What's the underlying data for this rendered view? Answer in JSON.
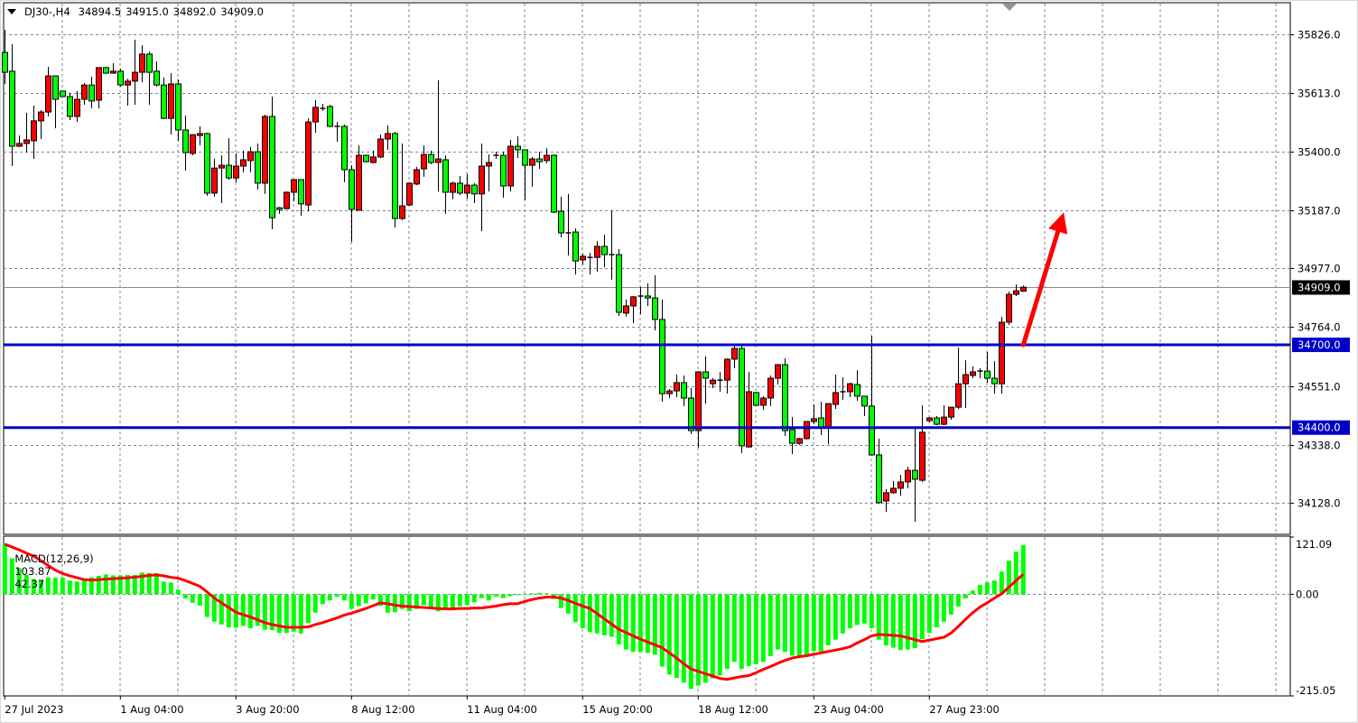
{
  "header": {
    "symbol": "DJ30-,H4",
    "open": "34894.5",
    "high": "34915.0",
    "low": "34892.0",
    "close": "34909.0"
  },
  "chart_data": [
    {
      "type": "candlestick",
      "symbol": "DJ30-",
      "timeframe": "H4",
      "ylim": [
        34013,
        35937
      ],
      "grid": true,
      "colors": {
        "bull_body": "#ff0000",
        "bear_body": "#00ff00",
        "outline": "#000000",
        "grid": "#7b8794",
        "current_price_line": "#8c8c8c"
      },
      "price_ticks": [
        "35826.0",
        "35613.0",
        "35400.0",
        "35187.0",
        "34977.0",
        "34764.0",
        "34551.0",
        "34338.0",
        "34128.0"
      ],
      "current_price": {
        "value": 34909.0,
        "label": "34909.0"
      },
      "levels": [
        {
          "value": 34700,
          "label": "34700.0",
          "color": "#0000c8"
        },
        {
          "value": 34400,
          "label": "34400.0",
          "color": "#0000c8"
        }
      ],
      "annotation": {
        "type": "arrow",
        "color": "#ff0000",
        "from": {
          "bar": 142,
          "price": 34700
        },
        "to": {
          "bar": 147.6,
          "price": 35180
        }
      },
      "x_ticks": [
        {
          "bar": 1,
          "label": "27 Jul 2023"
        },
        {
          "bar": 17,
          "label": "1 Aug 04:00"
        },
        {
          "bar": 33,
          "label": "3 Aug 20:00"
        },
        {
          "bar": 49,
          "label": "8 Aug 12:00"
        },
        {
          "bar": 65,
          "label": "11 Aug 04:00"
        },
        {
          "bar": 81,
          "label": "15 Aug 20:00"
        },
        {
          "bar": 97,
          "label": "18 Aug 12:00"
        },
        {
          "bar": 113,
          "label": "23 Aug 04:00"
        },
        {
          "bar": 129,
          "label": "27 Aug 23:00"
        }
      ],
      "ohlc": [
        [
          35760,
          35842,
          35646,
          35688
        ],
        [
          35692,
          35790,
          35348,
          35420
        ],
        [
          35420,
          35459,
          35417,
          35430
        ],
        [
          35430,
          35541,
          35397,
          35443
        ],
        [
          35440,
          35567,
          35374,
          35512
        ],
        [
          35512,
          35551,
          35446,
          35544
        ],
        [
          35544,
          35708,
          35528,
          35675
        ],
        [
          35675,
          35675,
          35485,
          35590
        ],
        [
          35620,
          35620,
          35600,
          35600
        ],
        [
          35600,
          35613,
          35515,
          35528
        ],
        [
          35528,
          35620,
          35508,
          35590
        ],
        [
          35590,
          35649,
          35570,
          35642
        ],
        [
          35642,
          35672,
          35557,
          35584
        ],
        [
          35587,
          35705,
          35557,
          35705
        ],
        [
          35705,
          35708,
          35682,
          35685
        ],
        [
          35685,
          35721,
          35682,
          35692
        ],
        [
          35692,
          35701,
          35636,
          35642
        ],
        [
          35642,
          35665,
          35567,
          35656
        ],
        [
          35656,
          35806,
          35570,
          35688
        ],
        [
          35688,
          35786,
          35652,
          35754
        ],
        [
          35754,
          35763,
          35570,
          35688
        ],
        [
          35692,
          35728,
          35636,
          35642
        ],
        [
          35642,
          35669,
          35518,
          35521
        ],
        [
          35521,
          35685,
          35462,
          35646
        ],
        [
          35646,
          35662,
          35440,
          35479
        ],
        [
          35479,
          35531,
          35332,
          35397
        ],
        [
          35394,
          35462,
          35387,
          35462
        ],
        [
          35459,
          35492,
          35423,
          35466
        ],
        [
          35466,
          35469,
          35240,
          35250
        ],
        [
          35250,
          35374,
          35237,
          35341
        ],
        [
          35341,
          35387,
          35214,
          35351
        ],
        [
          35351,
          35449,
          35299,
          35305
        ],
        [
          35305,
          35394,
          35289,
          35348
        ],
        [
          35348,
          35404,
          35325,
          35371
        ],
        [
          35368,
          35417,
          35325,
          35400
        ],
        [
          35400,
          35430,
          35263,
          35286
        ],
        [
          35286,
          35534,
          35247,
          35528
        ],
        [
          35528,
          35600,
          35119,
          35161
        ],
        [
          35197,
          35200,
          35175,
          35191
        ],
        [
          35194,
          35257,
          35191,
          35253
        ],
        [
          35253,
          35299,
          35220,
          35299
        ],
        [
          35299,
          35299,
          35168,
          35211
        ],
        [
          35207,
          35521,
          35184,
          35508
        ],
        [
          35508,
          35587,
          35469,
          35561
        ],
        [
          35557,
          35574,
          35548,
          35557
        ],
        [
          35564,
          35570,
          35489,
          35492
        ],
        [
          35492,
          35508,
          35436,
          35492
        ],
        [
          35492,
          35498,
          35289,
          35335
        ],
        [
          35335,
          35351,
          35073,
          35191
        ],
        [
          35188,
          35423,
          35188,
          35387
        ],
        [
          35387,
          35390,
          35361,
          35364
        ],
        [
          35361,
          35404,
          35358,
          35381
        ],
        [
          35381,
          35462,
          35377,
          35446
        ],
        [
          35446,
          35495,
          35407,
          35466
        ],
        [
          35466,
          35472,
          35125,
          35158
        ],
        [
          35158,
          35430,
          35152,
          35204
        ],
        [
          35207,
          35289,
          35204,
          35286
        ],
        [
          35283,
          35345,
          35279,
          35335
        ],
        [
          35338,
          35423,
          35309,
          35390
        ],
        [
          35390,
          35404,
          35355,
          35361
        ],
        [
          35361,
          35659,
          35256,
          35374
        ],
        [
          35371,
          35387,
          35175,
          35253
        ],
        [
          35253,
          35292,
          35227,
          35286
        ],
        [
          35286,
          35312,
          35243,
          35250
        ],
        [
          35250,
          35319,
          35230,
          35279
        ],
        [
          35279,
          35286,
          35214,
          35247
        ],
        [
          35247,
          35430,
          35112,
          35348
        ],
        [
          35348,
          35390,
          35256,
          35361
        ],
        [
          35387,
          35400,
          35374,
          35384
        ],
        [
          35387,
          35400,
          35233,
          35276
        ],
        [
          35276,
          35443,
          35256,
          35420
        ],
        [
          35420,
          35456,
          35377,
          35407
        ],
        [
          35407,
          35407,
          35224,
          35351
        ],
        [
          35351,
          35381,
          35273,
          35374
        ],
        [
          35374,
          35400,
          35338,
          35364
        ],
        [
          35368,
          35413,
          35358,
          35387
        ],
        [
          35387,
          35390,
          35178,
          35181
        ],
        [
          35184,
          35237,
          35089,
          35106
        ],
        [
          35106,
          35247,
          35024,
          35106
        ],
        [
          35109,
          35122,
          34955,
          35004
        ],
        [
          35008,
          35030,
          34991,
          35021
        ],
        [
          35017,
          35034,
          34955,
          35017
        ],
        [
          35017,
          35076,
          34965,
          35057
        ],
        [
          35057,
          35099,
          34981,
          35027
        ],
        [
          35027,
          35188,
          34936,
          35027
        ],
        [
          35027,
          35047,
          34805,
          34818
        ],
        [
          34815,
          34864,
          34802,
          34841
        ],
        [
          34841,
          34877,
          34779,
          34874
        ],
        [
          34877,
          34910,
          34811,
          34877
        ],
        [
          34877,
          34923,
          34841,
          34870
        ],
        [
          34870,
          34952,
          34752,
          34792
        ],
        [
          34792,
          34864,
          34494,
          34523
        ],
        [
          34523,
          34540,
          34507,
          34533
        ],
        [
          34533,
          34592,
          34510,
          34563
        ],
        [
          34563,
          34589,
          34478,
          34507
        ],
        [
          34507,
          34543,
          34376,
          34389
        ],
        [
          34389,
          34605,
          34327,
          34602
        ],
        [
          34602,
          34658,
          34487,
          34579
        ],
        [
          34559,
          34579,
          34543,
          34572
        ],
        [
          34572,
          34602,
          34530,
          34572
        ],
        [
          34572,
          34651,
          34523,
          34648
        ],
        [
          34648,
          34697,
          34615,
          34687
        ],
        [
          34687,
          34697,
          34307,
          34334
        ],
        [
          34330,
          34602,
          34327,
          34530
        ],
        [
          34527,
          34530,
          34478,
          34481
        ],
        [
          34481,
          34514,
          34464,
          34507
        ],
        [
          34507,
          34589,
          34478,
          34579
        ],
        [
          34579,
          34631,
          34556,
          34628
        ],
        [
          34628,
          34651,
          34370,
          34389
        ],
        [
          34393,
          34438,
          34304,
          34343
        ],
        [
          34343,
          34363,
          34337,
          34360
        ],
        [
          34360,
          34422,
          34357,
          34422
        ],
        [
          34422,
          34484,
          34412,
          34432
        ],
        [
          34435,
          34494,
          34373,
          34402
        ],
        [
          34402,
          34487,
          34340,
          34487
        ],
        [
          34484,
          34592,
          34468,
          34527
        ],
        [
          34530,
          34582,
          34500,
          34530
        ],
        [
          34530,
          34563,
          34510,
          34559
        ],
        [
          34556,
          34608,
          34497,
          34514
        ],
        [
          34514,
          34514,
          34442,
          34478
        ],
        [
          34478,
          34733,
          34298,
          34301
        ],
        [
          34301,
          34360,
          34124,
          34128
        ],
        [
          34134,
          34177,
          34095,
          34164
        ],
        [
          34164,
          34206,
          34160,
          34180
        ],
        [
          34180,
          34229,
          34153,
          34203
        ],
        [
          34203,
          34258,
          34180,
          34245
        ],
        [
          34245,
          34402,
          34059,
          34213
        ],
        [
          34209,
          34481,
          34203,
          34383
        ],
        [
          34425,
          34438,
          34419,
          34435
        ],
        [
          34435,
          34442,
          34409,
          34412
        ],
        [
          34412,
          34481,
          34409,
          34438
        ],
        [
          34438,
          34474,
          34428,
          34474
        ],
        [
          34474,
          34690,
          34468,
          34559
        ],
        [
          34559,
          34644,
          34471,
          34592
        ],
        [
          34589,
          34622,
          34579,
          34602
        ],
        [
          34605,
          34615,
          34579,
          34605
        ],
        [
          34605,
          34674,
          34563,
          34579
        ],
        [
          34579,
          34641,
          34523,
          34559
        ],
        [
          34559,
          34802,
          34523,
          34782
        ],
        [
          34782,
          34893,
          34772,
          34883
        ],
        [
          34883,
          34919,
          34877,
          34896
        ],
        [
          34894.5,
          34915.0,
          34892.0,
          34909.0
        ]
      ]
    },
    {
      "type": "bar",
      "label": "MACD(12,26,9)",
      "main_value": "103.87",
      "signal_value": "42.37",
      "ylim": [
        -215.05,
        121.09
      ],
      "y_ticks": [
        "121.09",
        "0.00",
        "-215.05"
      ],
      "colors": {
        "histogram": "#00ff00",
        "signal": "#ff0000"
      },
      "series": [
        {
          "type": "bar",
          "values": [
            108,
            76,
            55,
            41,
            32,
            29,
            36,
            35,
            35,
            29,
            27,
            31,
            36,
            39,
            42,
            40,
            40,
            41,
            41,
            46,
            45,
            45,
            27,
            25,
            10,
            -9,
            -18,
            -24,
            -48,
            -58,
            -64,
            -70,
            -71,
            -67,
            -72,
            -67,
            -75,
            -76,
            -82,
            -82,
            -79,
            -83,
            -61,
            -39,
            -21,
            -13,
            -5,
            -13,
            -31,
            -25,
            -19,
            -11,
            -24,
            -39,
            -38,
            -31,
            -36,
            -31,
            -23,
            -31,
            -36,
            -32,
            -31,
            -25,
            -23,
            -17,
            -8,
            -13,
            -5,
            -8,
            -4,
            -1,
            1,
            2,
            3,
            2,
            -10,
            -29,
            -41,
            -59,
            -72,
            -80,
            -83,
            -87,
            -90,
            -106,
            -117,
            -122,
            -122,
            -124,
            -128,
            -153,
            -170,
            -177,
            -187,
            -200,
            -193,
            -187,
            -178,
            -172,
            -158,
            -143,
            -158,
            -152,
            -148,
            -143,
            -131,
            -117,
            -122,
            -130,
            -131,
            -128,
            -120,
            -121,
            -108,
            -96,
            -83,
            -72,
            -65,
            -62,
            -72,
            -96,
            -108,
            -113,
            -118,
            -117,
            -114,
            -95,
            -82,
            -70,
            -58,
            -43,
            -26,
            -9,
            8,
            20,
            25,
            29,
            48,
            71,
            90,
            103.87
          ]
        },
        {
          "type": "line",
          "values": [
            106,
            100,
            94,
            87,
            81,
            71,
            61,
            51,
            44,
            39,
            35,
            31,
            30,
            31,
            32,
            33,
            34,
            35,
            36,
            38,
            40,
            41,
            39,
            36,
            34,
            29,
            23,
            17,
            5,
            -8,
            -18,
            -28,
            -38,
            -43,
            -48,
            -54,
            -60,
            -64,
            -67,
            -70,
            -70,
            -70,
            -69,
            -64,
            -60,
            -55,
            -50,
            -44,
            -40,
            -35,
            -30,
            -24,
            -18,
            -20,
            -23,
            -25,
            -26,
            -27,
            -28,
            -29,
            -30,
            -31,
            -31,
            -30,
            -30,
            -29,
            -29,
            -27,
            -25,
            -22,
            -20,
            -20,
            -15,
            -11,
            -8,
            -6,
            -6,
            -8,
            -13,
            -19,
            -25,
            -30,
            -41,
            -52,
            -63,
            -74,
            -81,
            -88,
            -95,
            -101,
            -107,
            -113,
            -124,
            -135,
            -147,
            -158,
            -163,
            -168,
            -173,
            -178,
            -180,
            -177,
            -174,
            -172,
            -166,
            -159,
            -153,
            -146,
            -140,
            -135,
            -132,
            -130,
            -127,
            -124,
            -121,
            -118,
            -115,
            -111,
            -103,
            -96,
            -88,
            -85,
            -86,
            -87,
            -88,
            -92,
            -96,
            -100,
            -97,
            -94,
            -91,
            -82,
            -68,
            -53,
            -39,
            -27,
            -18,
            -8,
            1,
            15,
            29,
            42.37
          ]
        }
      ]
    }
  ]
}
